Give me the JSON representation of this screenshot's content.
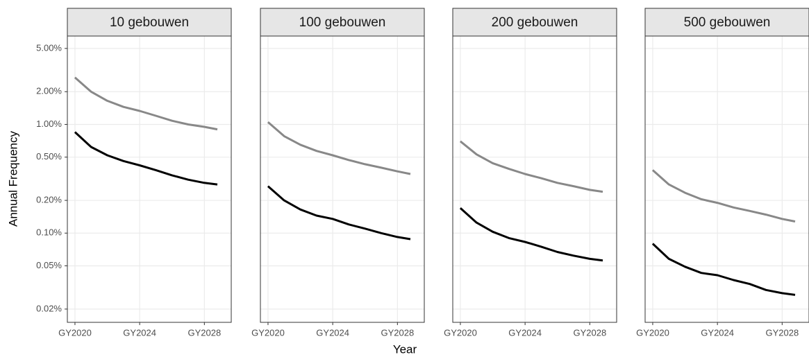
{
  "y_label": "Annual Frequency",
  "x_label": "Year",
  "chart_data": [
    {
      "type": "line",
      "title": "10 gebouwen",
      "log_y": true,
      "grid": true,
      "x": [
        2020,
        2021,
        2022,
        2023,
        2024,
        2025,
        2026,
        2027,
        2028,
        2028.8
      ],
      "series": [
        {
          "color": "#888888",
          "values": [
            2.7,
            2.0,
            1.65,
            1.45,
            1.33,
            1.2,
            1.08,
            1.0,
            0.95,
            0.9
          ]
        },
        {
          "color": "#000000",
          "values": [
            0.85,
            0.62,
            0.52,
            0.46,
            0.42,
            0.38,
            0.34,
            0.31,
            0.29,
            0.28
          ]
        }
      ],
      "xlim": [
        2019.53,
        2029.66
      ],
      "xticks": [
        {
          "value": 2020,
          "label": "GY2020"
        },
        {
          "value": 2024,
          "label": "GY2024"
        },
        {
          "value": 2028,
          "label": "GY2028"
        }
      ],
      "ylim": [
        0.0151,
        6.5
      ],
      "yticks": [
        {
          "value": 0.02,
          "label": "0.02%"
        },
        {
          "value": 0.05,
          "label": "0.05%"
        },
        {
          "value": 0.1,
          "label": "0.10%"
        },
        {
          "value": 0.2,
          "label": "0.20%"
        },
        {
          "value": 0.5,
          "label": "0.50%"
        },
        {
          "value": 1,
          "label": "1.00%"
        },
        {
          "value": 2,
          "label": "2.00%"
        },
        {
          "value": 5,
          "label": "5.00%"
        }
      ]
    },
    {
      "type": "line",
      "title": "100 gebouwen",
      "log_y": true,
      "grid": true,
      "x": [
        2020,
        2021,
        2022,
        2023,
        2024,
        2025,
        2026,
        2027,
        2028,
        2028.8
      ],
      "series": [
        {
          "color": "#888888",
          "values": [
            1.05,
            0.78,
            0.65,
            0.57,
            0.52,
            0.47,
            0.43,
            0.4,
            0.37,
            0.35
          ]
        },
        {
          "color": "#000000",
          "values": [
            0.27,
            0.2,
            0.165,
            0.145,
            0.135,
            0.12,
            0.11,
            0.1,
            0.092,
            0.088
          ]
        }
      ],
      "xlim": [
        2019.53,
        2029.66
      ],
      "xticks": [
        {
          "value": 2020,
          "label": "GY2020"
        },
        {
          "value": 2024,
          "label": "GY2024"
        },
        {
          "value": 2028,
          "label": "GY2028"
        }
      ],
      "ylim": [
        0.0151,
        6.5
      ],
      "yticks": [
        0.02,
        0.05,
        0.1,
        0.2,
        0.5,
        1,
        2,
        5
      ]
    },
    {
      "type": "line",
      "title": "200 gebouwen",
      "log_y": true,
      "grid": true,
      "x": [
        2020,
        2021,
        2022,
        2023,
        2024,
        2025,
        2026,
        2027,
        2028,
        2028.8
      ],
      "series": [
        {
          "color": "#888888",
          "values": [
            0.7,
            0.53,
            0.44,
            0.39,
            0.35,
            0.32,
            0.29,
            0.27,
            0.25,
            0.24
          ]
        },
        {
          "color": "#000000",
          "values": [
            0.17,
            0.125,
            0.103,
            0.09,
            0.083,
            0.075,
            0.067,
            0.062,
            0.058,
            0.056
          ]
        }
      ],
      "xlim": [
        2019.53,
        2029.66
      ],
      "xticks": [
        {
          "value": 2020,
          "label": "GY2020"
        },
        {
          "value": 2024,
          "label": "GY2024"
        },
        {
          "value": 2028,
          "label": "GY2028"
        }
      ],
      "ylim": [
        0.0151,
        6.5
      ],
      "yticks": [
        0.02,
        0.05,
        0.1,
        0.2,
        0.5,
        1,
        2,
        5
      ]
    },
    {
      "type": "line",
      "title": "500 gebouwen",
      "log_y": true,
      "grid": true,
      "x": [
        2020,
        2021,
        2022,
        2023,
        2024,
        2025,
        2026,
        2027,
        2028,
        2028.8
      ],
      "series": [
        {
          "color": "#888888",
          "values": [
            0.38,
            0.28,
            0.235,
            0.205,
            0.19,
            0.172,
            0.16,
            0.148,
            0.135,
            0.128
          ]
        },
        {
          "color": "#000000",
          "values": [
            0.08,
            0.058,
            0.049,
            0.043,
            0.041,
            0.037,
            0.034,
            0.03,
            0.028,
            0.027
          ]
        }
      ],
      "xlim": [
        2019.53,
        2029.66
      ],
      "xticks": [
        {
          "value": 2020,
          "label": "GY2020"
        },
        {
          "value": 2024,
          "label": "GY2024"
        },
        {
          "value": 2028,
          "label": "GY2028"
        }
      ],
      "ylim": [
        0.0151,
        6.5
      ],
      "yticks": [
        0.02,
        0.05,
        0.1,
        0.2,
        0.5,
        1,
        2,
        5
      ]
    }
  ]
}
